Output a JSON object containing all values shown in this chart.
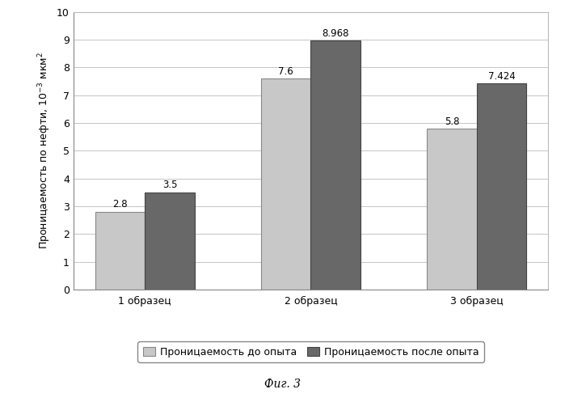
{
  "categories": [
    "1 образец",
    "2 образец",
    "3 образец"
  ],
  "before": [
    2.8,
    7.6,
    5.8
  ],
  "after": [
    3.5,
    8.968,
    7.424
  ],
  "bar_color_before": "#c8c8c8",
  "bar_color_after": "#686868",
  "ylim": [
    0,
    10
  ],
  "yticks": [
    0,
    1,
    2,
    3,
    4,
    5,
    6,
    7,
    8,
    9,
    10
  ],
  "legend_before": "Проницаемость до опыта",
  "legend_after": "Проницаемость после опыта",
  "caption": "Фиг. 3",
  "bar_width": 0.3,
  "label_fontsize": 8.5,
  "tick_fontsize": 9,
  "ylabel_fontsize": 9,
  "legend_fontsize": 9,
  "caption_fontsize": 10
}
